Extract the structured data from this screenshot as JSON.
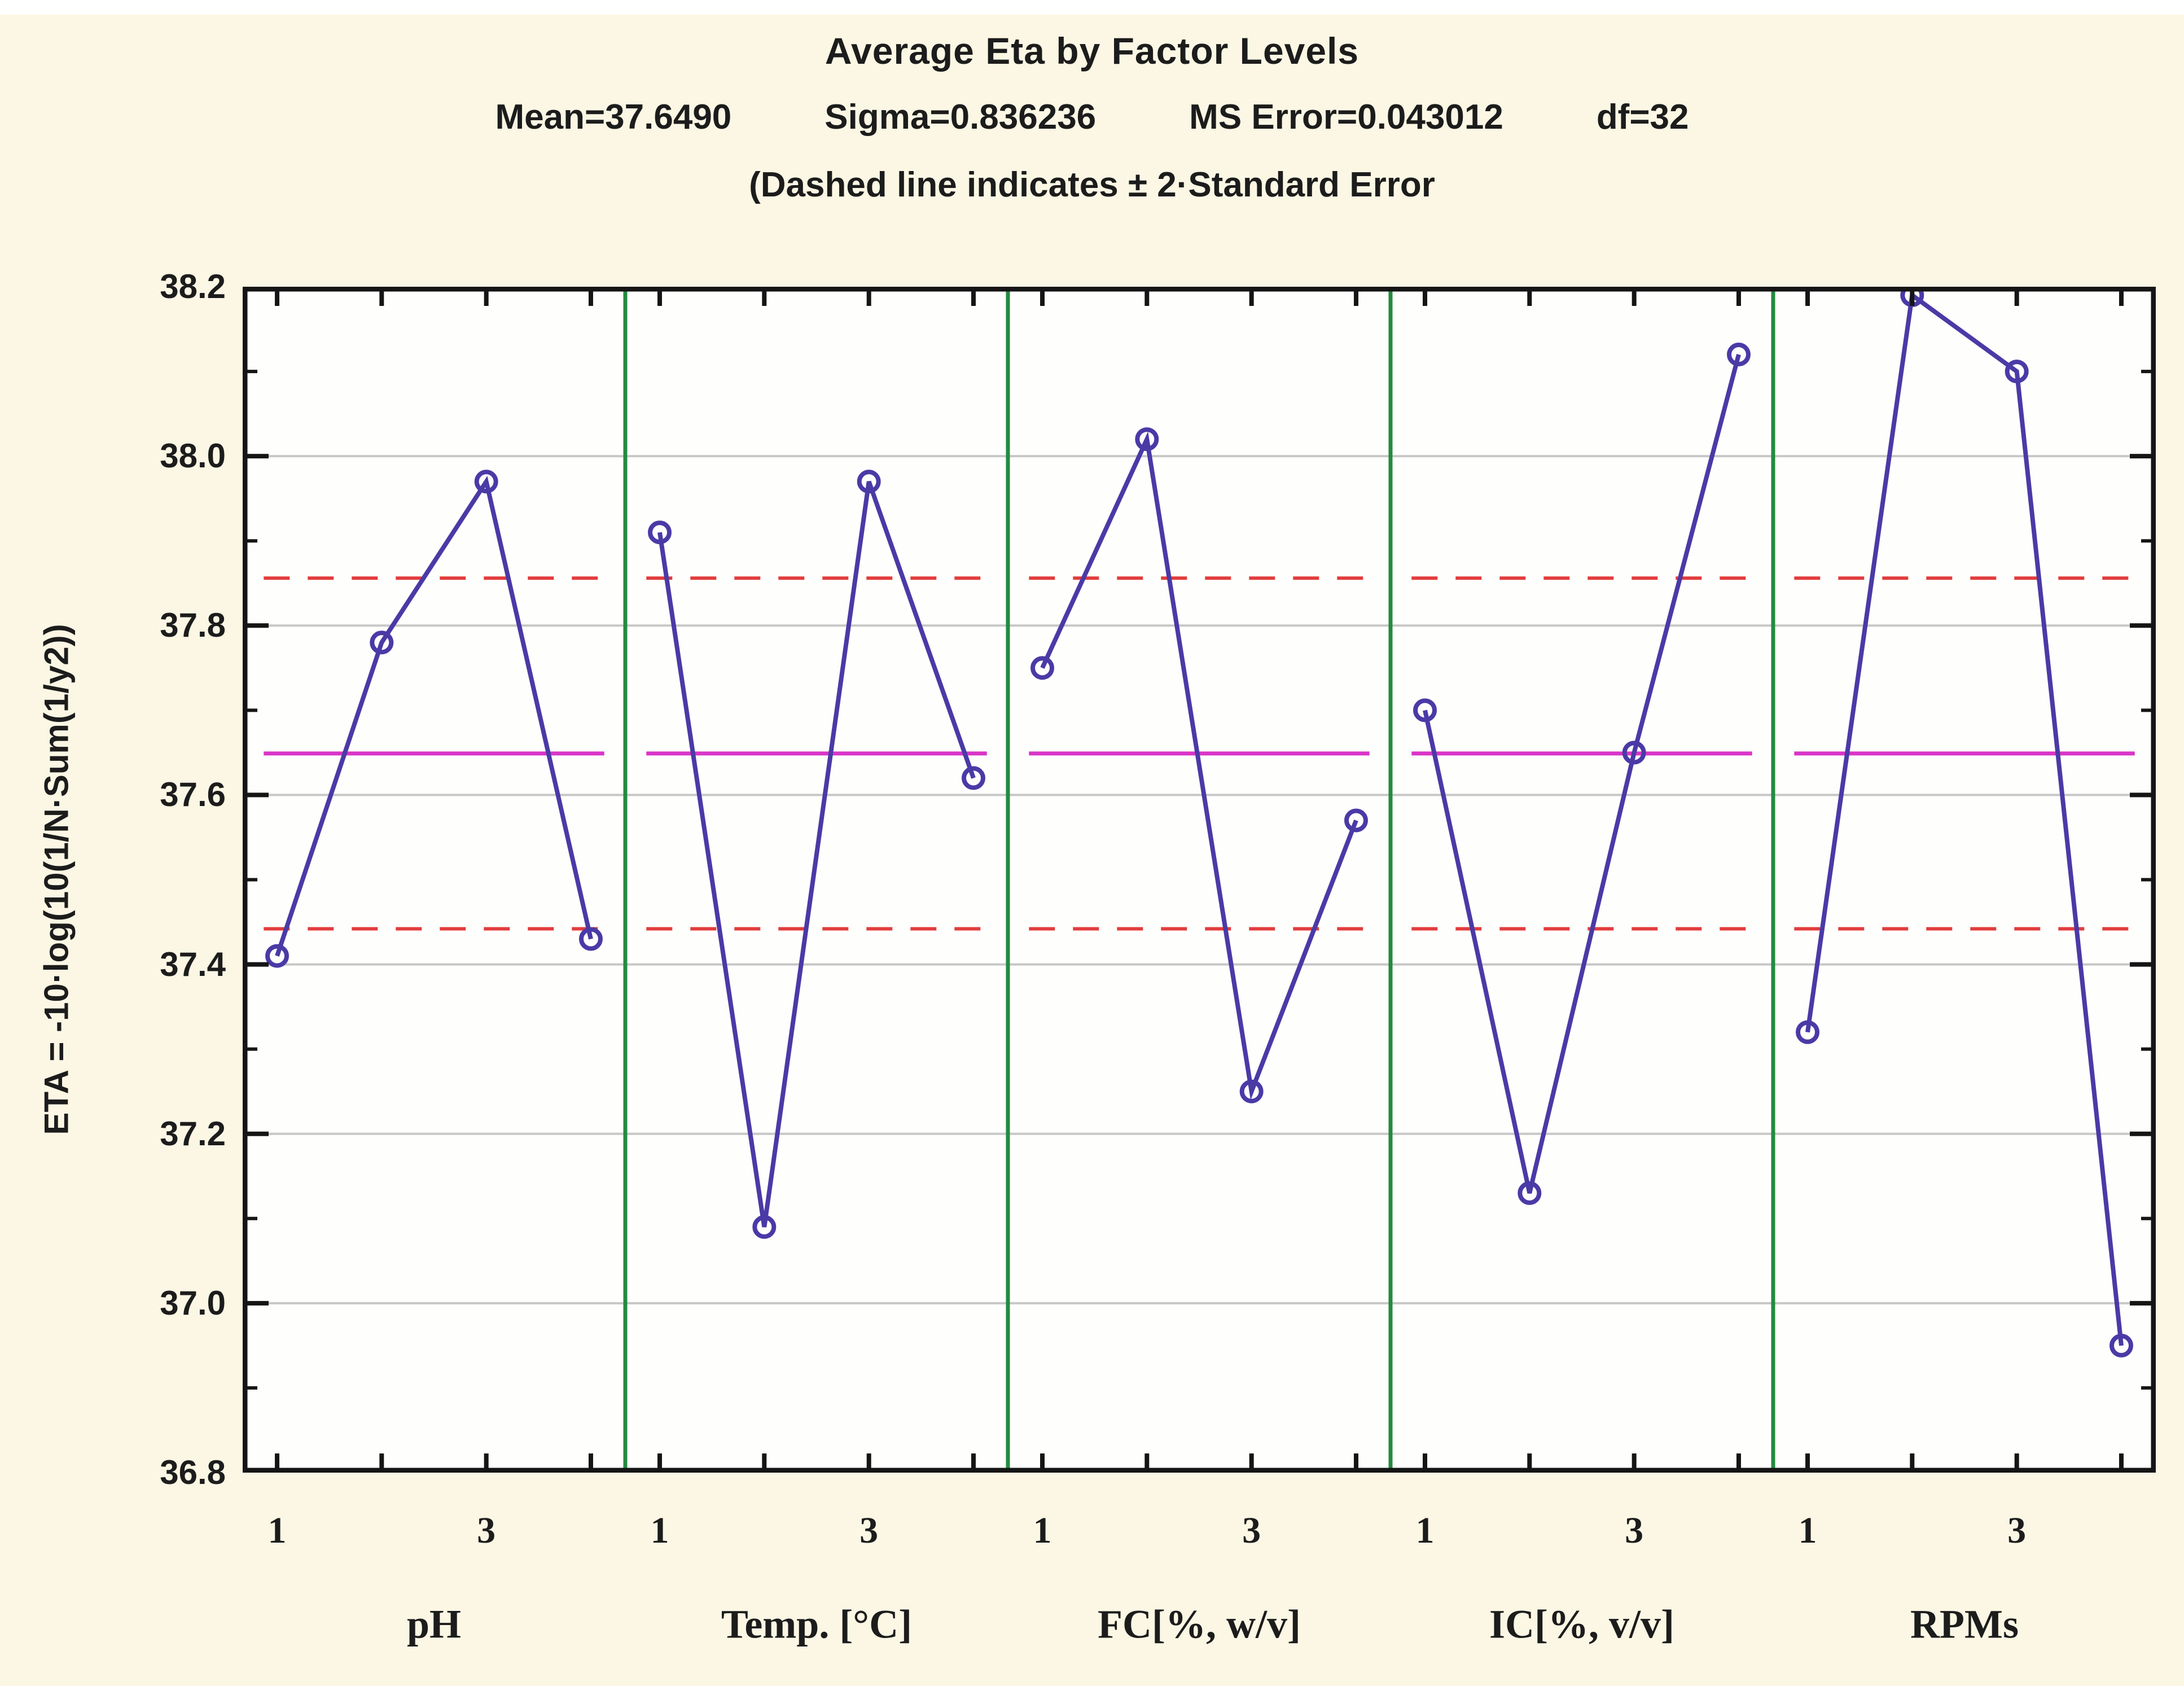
{
  "title": "Average Eta by Factor Levels",
  "stats": {
    "mean": "Mean=37.6490",
    "sigma": "Sigma=0.836236",
    "ms_error": "MS Error=0.043012",
    "df": "df=32"
  },
  "subtitle": "(Dashed line indicates  ± 2·Standard Error",
  "y_axis": {
    "label": "ETA = -10·log(10(1/N·Sum(1/y2))",
    "tick_labels": [
      "38.2",
      "38.0",
      "37.8",
      "37.6",
      "37.4",
      "37.2",
      "37.0",
      "36.8"
    ]
  },
  "x_axis": {
    "level_tick_labels": [
      "1",
      "3"
    ]
  },
  "chart_data": {
    "type": "line",
    "title": "Average Eta by Factor Levels",
    "ylabel": "ETA = -10·log(10(1/N·Sum(1/y2))",
    "ylim": [
      36.8,
      38.2
    ],
    "y_major_step": 0.2,
    "y_minor_step": 0.1,
    "grid": "horizontal-major",
    "x_levels": [
      1,
      2,
      3,
      4
    ],
    "x_labeled_levels": [
      1,
      3
    ],
    "panels": [
      {
        "factor": "pH",
        "values": [
          37.41,
          37.78,
          37.97,
          37.43
        ]
      },
      {
        "factor": "Temp. [°C]",
        "values": [
          37.91,
          37.09,
          37.97,
          37.62
        ]
      },
      {
        "factor": "FC[%, w/v]",
        "values": [
          37.75,
          38.02,
          37.25,
          37.57
        ]
      },
      {
        "factor": "IC[%, v/v]",
        "values": [
          37.7,
          37.13,
          37.65,
          38.12
        ]
      },
      {
        "factor": "RPMs",
        "values": [
          37.32,
          38.19,
          38.1,
          36.95
        ]
      }
    ],
    "reference_lines": {
      "mean": 37.649,
      "upper_2se": 37.856,
      "lower_2se": 37.442
    }
  },
  "colors": {
    "page_background": "#fbf7e4",
    "plot_background": "#fefefc",
    "gridline": "#c7c7c7",
    "panel_separator_green": "#238b3f",
    "series_indigo": "#4a3aa6",
    "mean_line_magenta": "#d935c8",
    "dashed_se_red": "#e23c3c",
    "axis_black": "#151515",
    "text": "#1c1c1c"
  }
}
